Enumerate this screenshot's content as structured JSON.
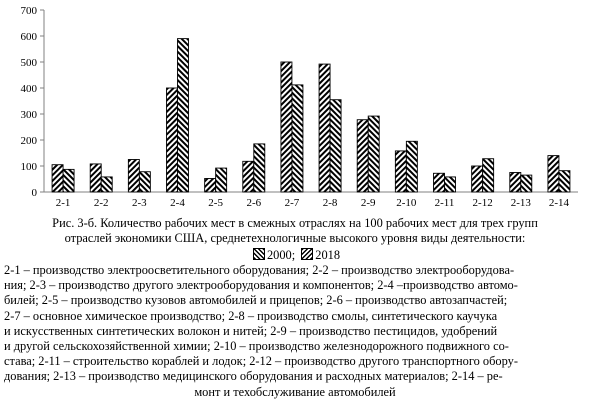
{
  "chart_data": {
    "type": "bar",
    "categories": [
      "2-1",
      "2-2",
      "2-3",
      "2-4",
      "2-5",
      "2-6",
      "2-7",
      "2-8",
      "2-9",
      "2-10",
      "2-11",
      "2-12",
      "2-13",
      "2-14"
    ],
    "series": [
      {
        "name": "2000",
        "values": [
          105,
          108,
          125,
          400,
          52,
          118,
          500,
          492,
          278,
          158,
          72,
          100,
          75,
          140
        ]
      },
      {
        "name": "2018",
        "values": [
          87,
          58,
          78,
          590,
          92,
          185,
          412,
          355,
          292,
          195,
          58,
          128,
          65,
          82
        ]
      }
    ],
    "ylim": [
      0,
      700
    ],
    "yticks": [
      0,
      100,
      200,
      300,
      400,
      500,
      600,
      700
    ],
    "grid": false,
    "legend": "bottom-center"
  },
  "caption": [
    "Рис. 3-б. Количество рабочих мест в смежных отраслях на 100 рабочих мест для трех групп",
    "отраслей экономики США, среднетехнологичные высокого уровня виды деятельности:"
  ],
  "legend_sep": ";",
  "notes": [
    "2-1 – производство электроосветительного оборудования; 2-2 – производство электрооборудова-",
    "ния; 2-3 – производство другого электрооборудования и компонентов; 2-4 –производство автомо-",
    "билей; 2-5 – производство кузовов автомобилей и прицепов; 2-6 – производство автозапчастей;",
    "2-7 – основное химическое производство; 2-8 – производство смолы, синтетического каучука",
    "и искусственных синтетических волокон и нитей; 2-9 – производство пестицидов, удобрений",
    "и другой сельскохозяйственной химии; 2-10 – производство железнодорожного подвижного со-",
    "става; 2-11 – строительство кораблей и лодок; 2-12 – производство другого транспортного обору-",
    "дования; 2-13 – производство медицинского оборудования и расходных материалов; 2-14 – ре-",
    "монт и техобслуживание автомобилей"
  ]
}
